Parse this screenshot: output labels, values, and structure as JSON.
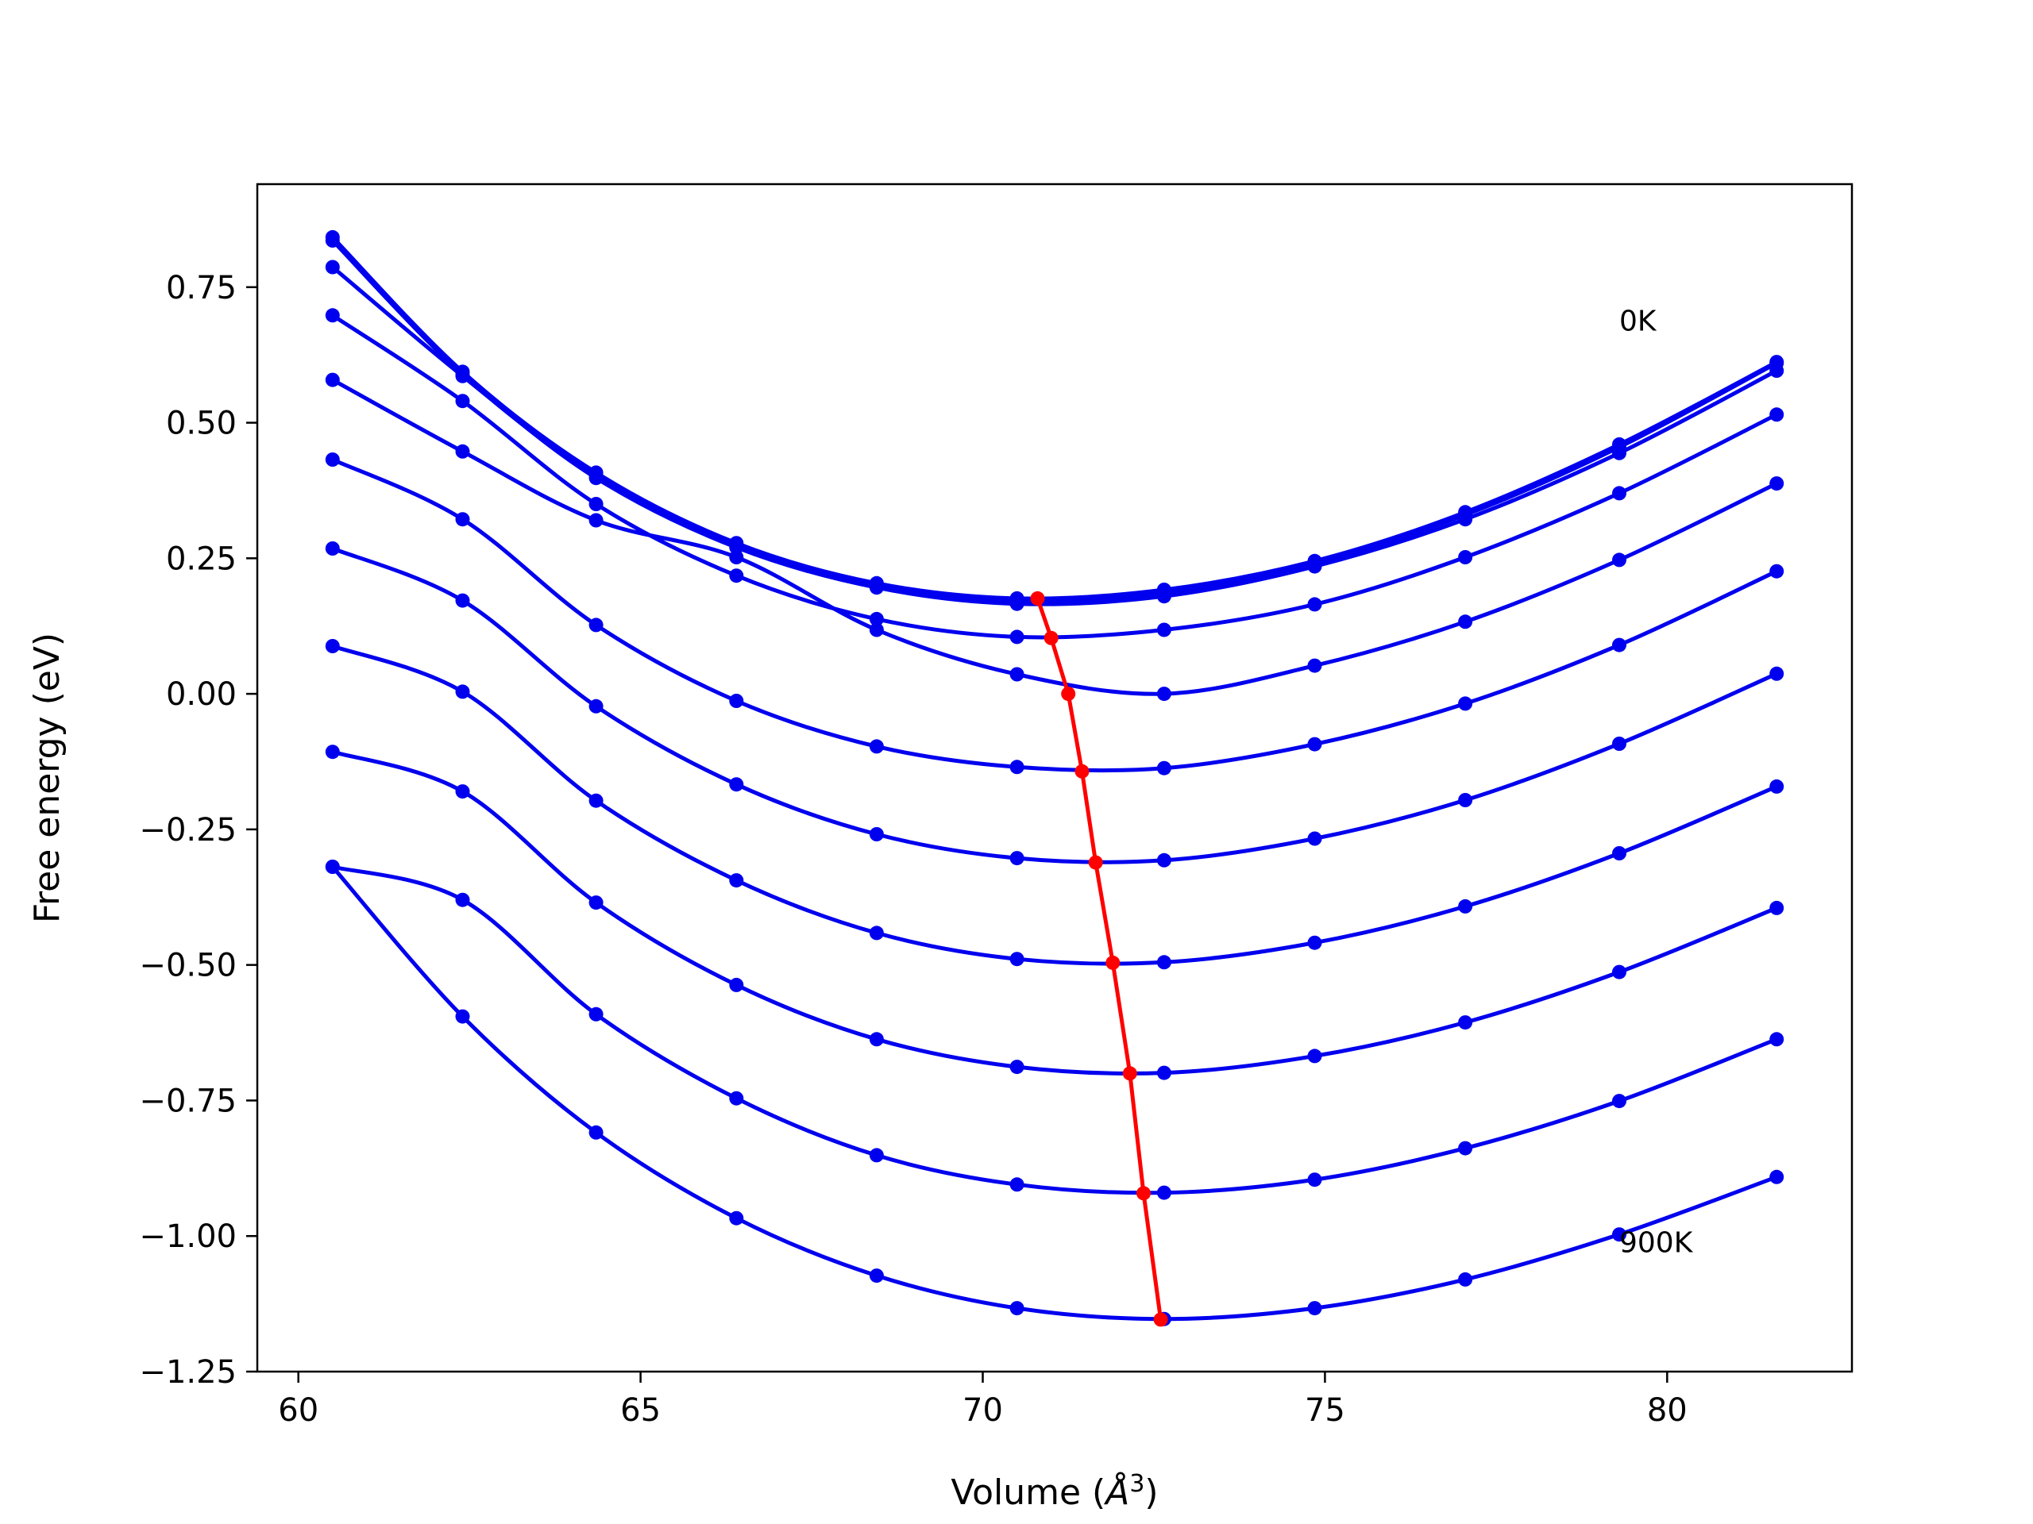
{
  "chart_data": {
    "type": "line",
    "xlabel_main": "Volume (",
    "xlabel_unit": "Å",
    "xlabel_exp": "3",
    "xlabel_close": ")",
    "ylabel": "Free energy (eV)",
    "xlim": [
      59.4,
      82.7
    ],
    "ylim": [
      -1.25,
      0.94
    ],
    "xticks": [
      60,
      65,
      70,
      75,
      80
    ],
    "xtick_labels": [
      "60",
      "65",
      "70",
      "75",
      "80"
    ],
    "yticks": [
      -1.25,
      -1.0,
      -0.75,
      -0.5,
      -0.25,
      0.0,
      0.25,
      0.5,
      0.75
    ],
    "ytick_labels": [
      "−1.25",
      "−1.00",
      "−0.75",
      "−0.50",
      "−0.25",
      "0.00",
      "0.25",
      "0.50",
      "0.75"
    ],
    "grid": false,
    "colors": {
      "curves": "#0000ee",
      "minima": "#ff0000",
      "axes": "#000000"
    },
    "annotations": [
      {
        "text": "0K",
        "x": 79.3,
        "y": 0.67
      },
      {
        "text": "900K",
        "x": 79.3,
        "y": -1.03
      }
    ],
    "x": [
      60.5,
      62.4,
      64.35,
      66.4,
      68.45,
      70.5,
      72.65,
      74.85,
      77.05,
      79.3,
      81.6
    ],
    "series": [
      {
        "values": [
          0.842,
          0.594,
          0.408,
          0.278,
          0.204,
          0.176,
          0.192,
          0.245,
          0.335,
          0.46,
          0.612
        ]
      },
      {
        "values": [
          0.836,
          0.589,
          0.402,
          0.272,
          0.198,
          0.17,
          0.186,
          0.24,
          0.33,
          0.455,
          0.61
        ]
      },
      {
        "values": [
          0.787,
          0.586,
          0.398,
          0.27,
          0.196,
          0.166,
          0.18,
          0.235,
          0.322,
          0.444,
          0.596
        ]
      },
      {
        "values": [
          0.698,
          0.54,
          0.35,
          0.218,
          0.138,
          0.105,
          0.118,
          0.165,
          0.252,
          0.37,
          0.515
        ]
      },
      {
        "values": [
          0.579,
          0.447,
          0.32,
          0.252,
          0.118,
          0.036,
          0.0,
          0.052,
          0.133,
          0.247,
          0.388
        ]
      },
      {
        "values": [
          0.432,
          0.322,
          0.127,
          -0.013,
          -0.097,
          -0.135,
          -0.137,
          -0.093,
          -0.018,
          0.09,
          0.226
        ]
      },
      {
        "values": [
          0.268,
          0.172,
          -0.023,
          -0.167,
          -0.259,
          -0.303,
          -0.307,
          -0.267,
          -0.196,
          -0.092,
          0.037
        ]
      },
      {
        "values": [
          0.088,
          0.004,
          -0.197,
          -0.344,
          -0.441,
          -0.489,
          -0.495,
          -0.459,
          -0.392,
          -0.294,
          -0.171
        ]
      },
      {
        "values": [
          -0.107,
          -0.18,
          -0.385,
          -0.537,
          -0.637,
          -0.688,
          -0.699,
          -0.668,
          -0.606,
          -0.513,
          -0.395
        ]
      },
      {
        "values": [
          -0.319,
          -0.38,
          -0.591,
          -0.746,
          -0.851,
          -0.905,
          -0.92,
          -0.896,
          -0.838,
          -0.751,
          -0.637
        ]
      },
      {
        "values": [
          -0.319,
          -0.595,
          -0.809,
          -0.967,
          -1.073,
          -1.133,
          -1.153,
          -1.133,
          -1.08,
          -0.997,
          -0.891
        ]
      }
    ],
    "minima": {
      "x": [
        70.8,
        71.0,
        71.25,
        71.45,
        71.65,
        71.9,
        72.15,
        72.35,
        72.6
      ],
      "y": [
        0.176,
        0.103,
        0.0,
        -0.143,
        -0.311,
        -0.496,
        -0.7,
        -0.921,
        -1.154
      ]
    }
  }
}
